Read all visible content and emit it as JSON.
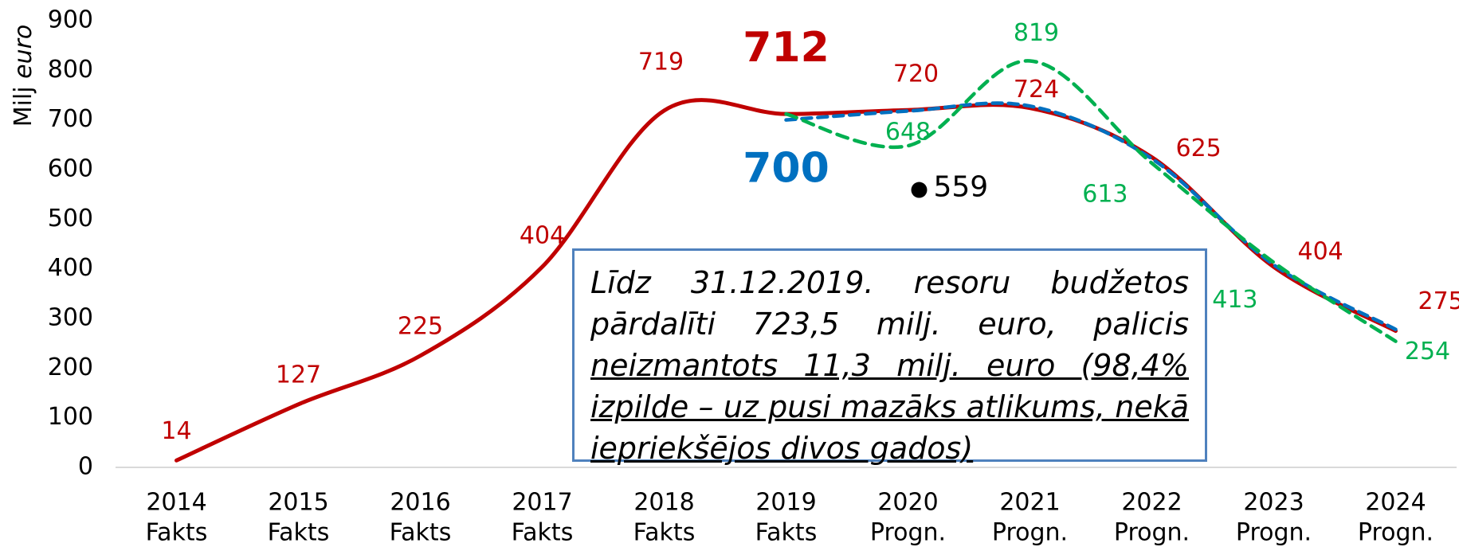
{
  "chart_data": {
    "type": "line",
    "ylabel": "Milj",
    "ylabel_unit": "euro",
    "categories": [
      "2014",
      "2015",
      "2016",
      "2017",
      "2018",
      "2019",
      "2020",
      "2021",
      "2022",
      "2023",
      "2024"
    ],
    "category_sublabels": [
      "Fakts",
      "Fakts",
      "Fakts",
      "Fakts",
      "Fakts",
      "Fakts",
      "Progn.",
      "Progn.",
      "Progn.",
      "Progn.",
      "Progn."
    ],
    "ylim": [
      0,
      900
    ],
    "yticks": [
      0,
      100,
      200,
      300,
      400,
      500,
      600,
      700,
      800,
      900
    ],
    "series": [
      {
        "color": "#c00000",
        "style": "solid",
        "values": [
          14,
          127,
          225,
          404,
          719,
          712,
          720,
          724,
          625,
          404,
          275
        ],
        "labeled": [
          0,
          1,
          2,
          3,
          4,
          5,
          6,
          7,
          8,
          9,
          10
        ]
      },
      {
        "color": "#0070c0",
        "style": "dashed",
        "values": [
          null,
          null,
          null,
          null,
          null,
          700,
          718,
          728,
          622,
          408,
          278
        ],
        "labeled": [
          5
        ]
      },
      {
        "color": "#00b050",
        "style": "dashed",
        "values": [
          null,
          null,
          null,
          null,
          null,
          712,
          648,
          819,
          613,
          413,
          254
        ],
        "labeled": [
          6,
          7,
          8,
          9,
          10
        ]
      }
    ],
    "points": [
      {
        "category": 6,
        "value": 559,
        "color": "#000000"
      }
    ],
    "annotation": {
      "plain": "Līdz 31.12.2019. resoru budžetos pārdalīti 723,5 milj. euro, palicis ",
      "underlined": "neizmantots 11,3 milj. euro (98,4% izpilde – uz pusi mazāks atlikums, nekā iepriekšējos divos gados)"
    }
  }
}
